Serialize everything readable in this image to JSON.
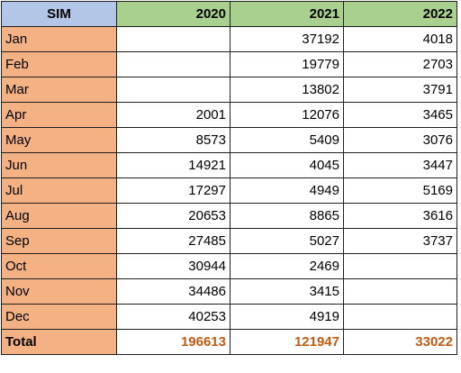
{
  "header": {
    "label": "SIM",
    "years": [
      "2020",
      "2021",
      "2022"
    ]
  },
  "rows": [
    {
      "month": "Jan",
      "values": [
        "",
        "37192",
        "4018"
      ]
    },
    {
      "month": "Feb",
      "values": [
        "",
        "19779",
        "2703"
      ]
    },
    {
      "month": "Mar",
      "values": [
        "",
        "13802",
        "3791"
      ]
    },
    {
      "month": "Apr",
      "values": [
        "2001",
        "12076",
        "3465"
      ]
    },
    {
      "month": "May",
      "values": [
        "8573",
        "5409",
        "3076"
      ]
    },
    {
      "month": "Jun",
      "values": [
        "14921",
        "4045",
        "3447"
      ]
    },
    {
      "month": "Jul",
      "values": [
        "17297",
        "4949",
        "5169"
      ]
    },
    {
      "month": "Aug",
      "values": [
        "20653",
        "8865",
        "3616"
      ]
    },
    {
      "month": "Sep",
      "values": [
        "27485",
        "5027",
        "3737"
      ]
    },
    {
      "month": "Oct",
      "values": [
        "30944",
        "2469",
        ""
      ]
    },
    {
      "month": "Nov",
      "values": [
        "34486",
        "3415",
        ""
      ]
    },
    {
      "month": "Dec",
      "values": [
        "40253",
        "4919",
        ""
      ]
    }
  ],
  "total": {
    "label": "Total",
    "values": [
      "196613",
      "121947",
      "33022"
    ]
  },
  "colors": {
    "header_label_bg": "#b4c6e7",
    "header_year_bg": "#a9d08e",
    "month_bg": "#f4b183",
    "total_value_text": "#c55a11"
  }
}
